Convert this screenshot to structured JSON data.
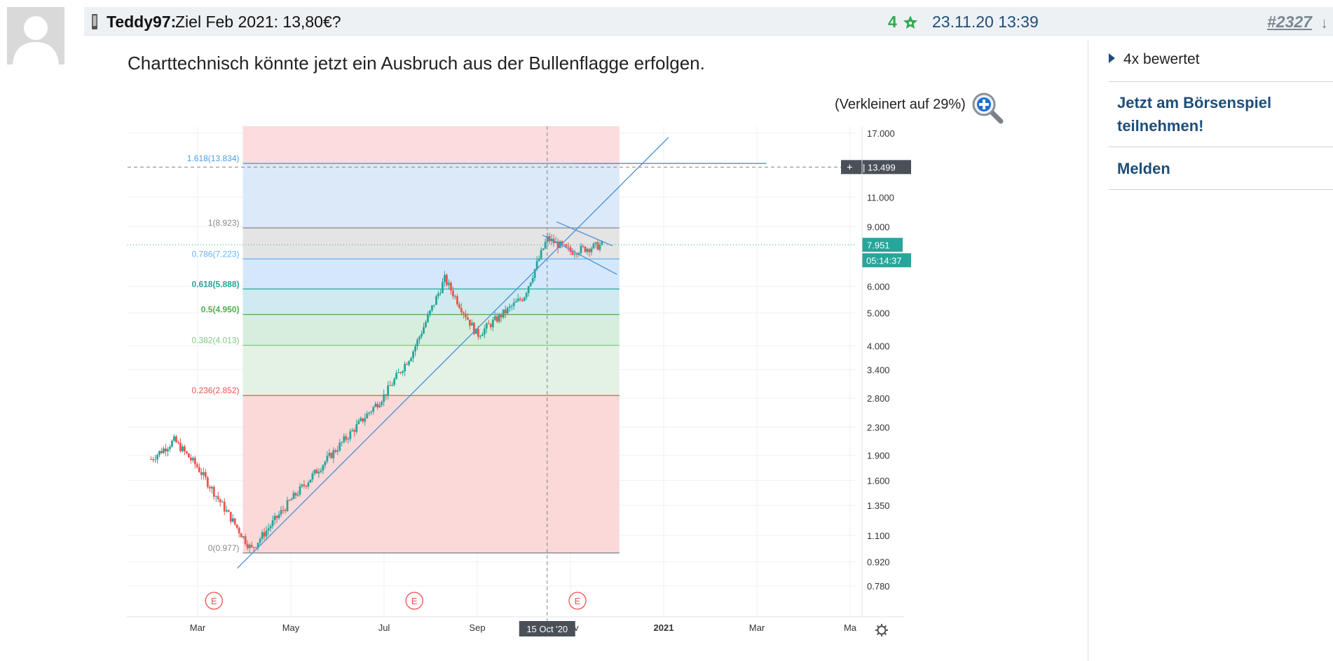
{
  "post": {
    "author": "Teddy97:",
    "subject": "Ziel Feb 2021: 13,80€?",
    "rating": "4",
    "timestamp": "23.11.20 13:39",
    "post_number": "#2327",
    "body": "Charttechnisch könnte jetzt ein Ausbruch aus der Bullenflagge erfolgen.",
    "zoom_note": "(Verkleinert auf 29%)"
  },
  "sidebar": {
    "rated": "4x bewertet",
    "game_link": "Jetzt am Börsenspiel teilnehmen!",
    "report_link": "Melden"
  },
  "icons": {
    "avatar": "user-silhouette-icon",
    "device": "phone-icon",
    "star": "star-icon",
    "zoom": "magnifier-plus-icon",
    "jump": "arrow-down-icon",
    "settings": "gear-icon"
  },
  "colors": {
    "accent": "#1e4e7a",
    "rating": "#34a853",
    "candle_up": "#26a69a",
    "candle_down": "#ef5350",
    "trendline": "#4a90d9"
  },
  "chart_data": {
    "type": "candlestick",
    "x_ticks": [
      "Mar",
      "May",
      "Jul",
      "Sep",
      "Nov",
      "2021",
      "Mar",
      "Ma"
    ],
    "cursor_date_label": "15 Oct '20",
    "y_scale": "log",
    "y_ticks": [
      "17.000",
      "13.499",
      "11.000",
      "9.000",
      "7.951",
      "6.000",
      "5.000",
      "4.000",
      "3.400",
      "2.800",
      "2.300",
      "1.900",
      "1.600",
      "1.350",
      "1.100",
      "0.920",
      "0.780"
    ],
    "last_price": "7.951",
    "countdown": "05:14:37",
    "crosshair_price": "13.499",
    "fibonacci_levels": [
      {
        "label": "1.618(13.834)",
        "value": 13.834,
        "color": "#4a9fe0"
      },
      {
        "label": "1(8.923)",
        "value": 8.923,
        "color": "#888888"
      },
      {
        "label": "0.786(7.223)",
        "value": 7.223,
        "color": "#64b5f6"
      },
      {
        "label": "0.618(5.888)",
        "value": 5.888,
        "color": "#26a69a"
      },
      {
        "label": "0.5(4.950)",
        "value": 4.95,
        "color": "#4caf50"
      },
      {
        "label": "0.382(4.013)",
        "value": 4.013,
        "color": "#81c784"
      },
      {
        "label": "0.236(2.852)",
        "value": 2.852,
        "color": "#ef5350"
      },
      {
        "label": "0(0.977)",
        "value": 0.977,
        "color": "#888888"
      }
    ],
    "earnings_markers": [
      "E",
      "E",
      "E"
    ],
    "approx_price_path": [
      {
        "x": "Feb",
        "y": 1.85
      },
      {
        "x": "Feb (mid)",
        "y": 2.1
      },
      {
        "x": "Mar",
        "y": 1.75
      },
      {
        "x": "Apr (early)",
        "y": 1.0
      },
      {
        "x": "May",
        "y": 1.4
      },
      {
        "x": "Jun",
        "y": 2.0
      },
      {
        "x": "Jul",
        "y": 2.85
      },
      {
        "x": "Jul (late)",
        "y": 3.8
      },
      {
        "x": "Aug",
        "y": 6.3
      },
      {
        "x": "Sep",
        "y": 4.3
      },
      {
        "x": "Oct",
        "y": 5.6
      },
      {
        "x": "Oct (mid)",
        "y": 8.3
      },
      {
        "x": "Nov",
        "y": 7.6
      },
      {
        "x": "Nov (late)",
        "y": 7.95
      }
    ]
  }
}
